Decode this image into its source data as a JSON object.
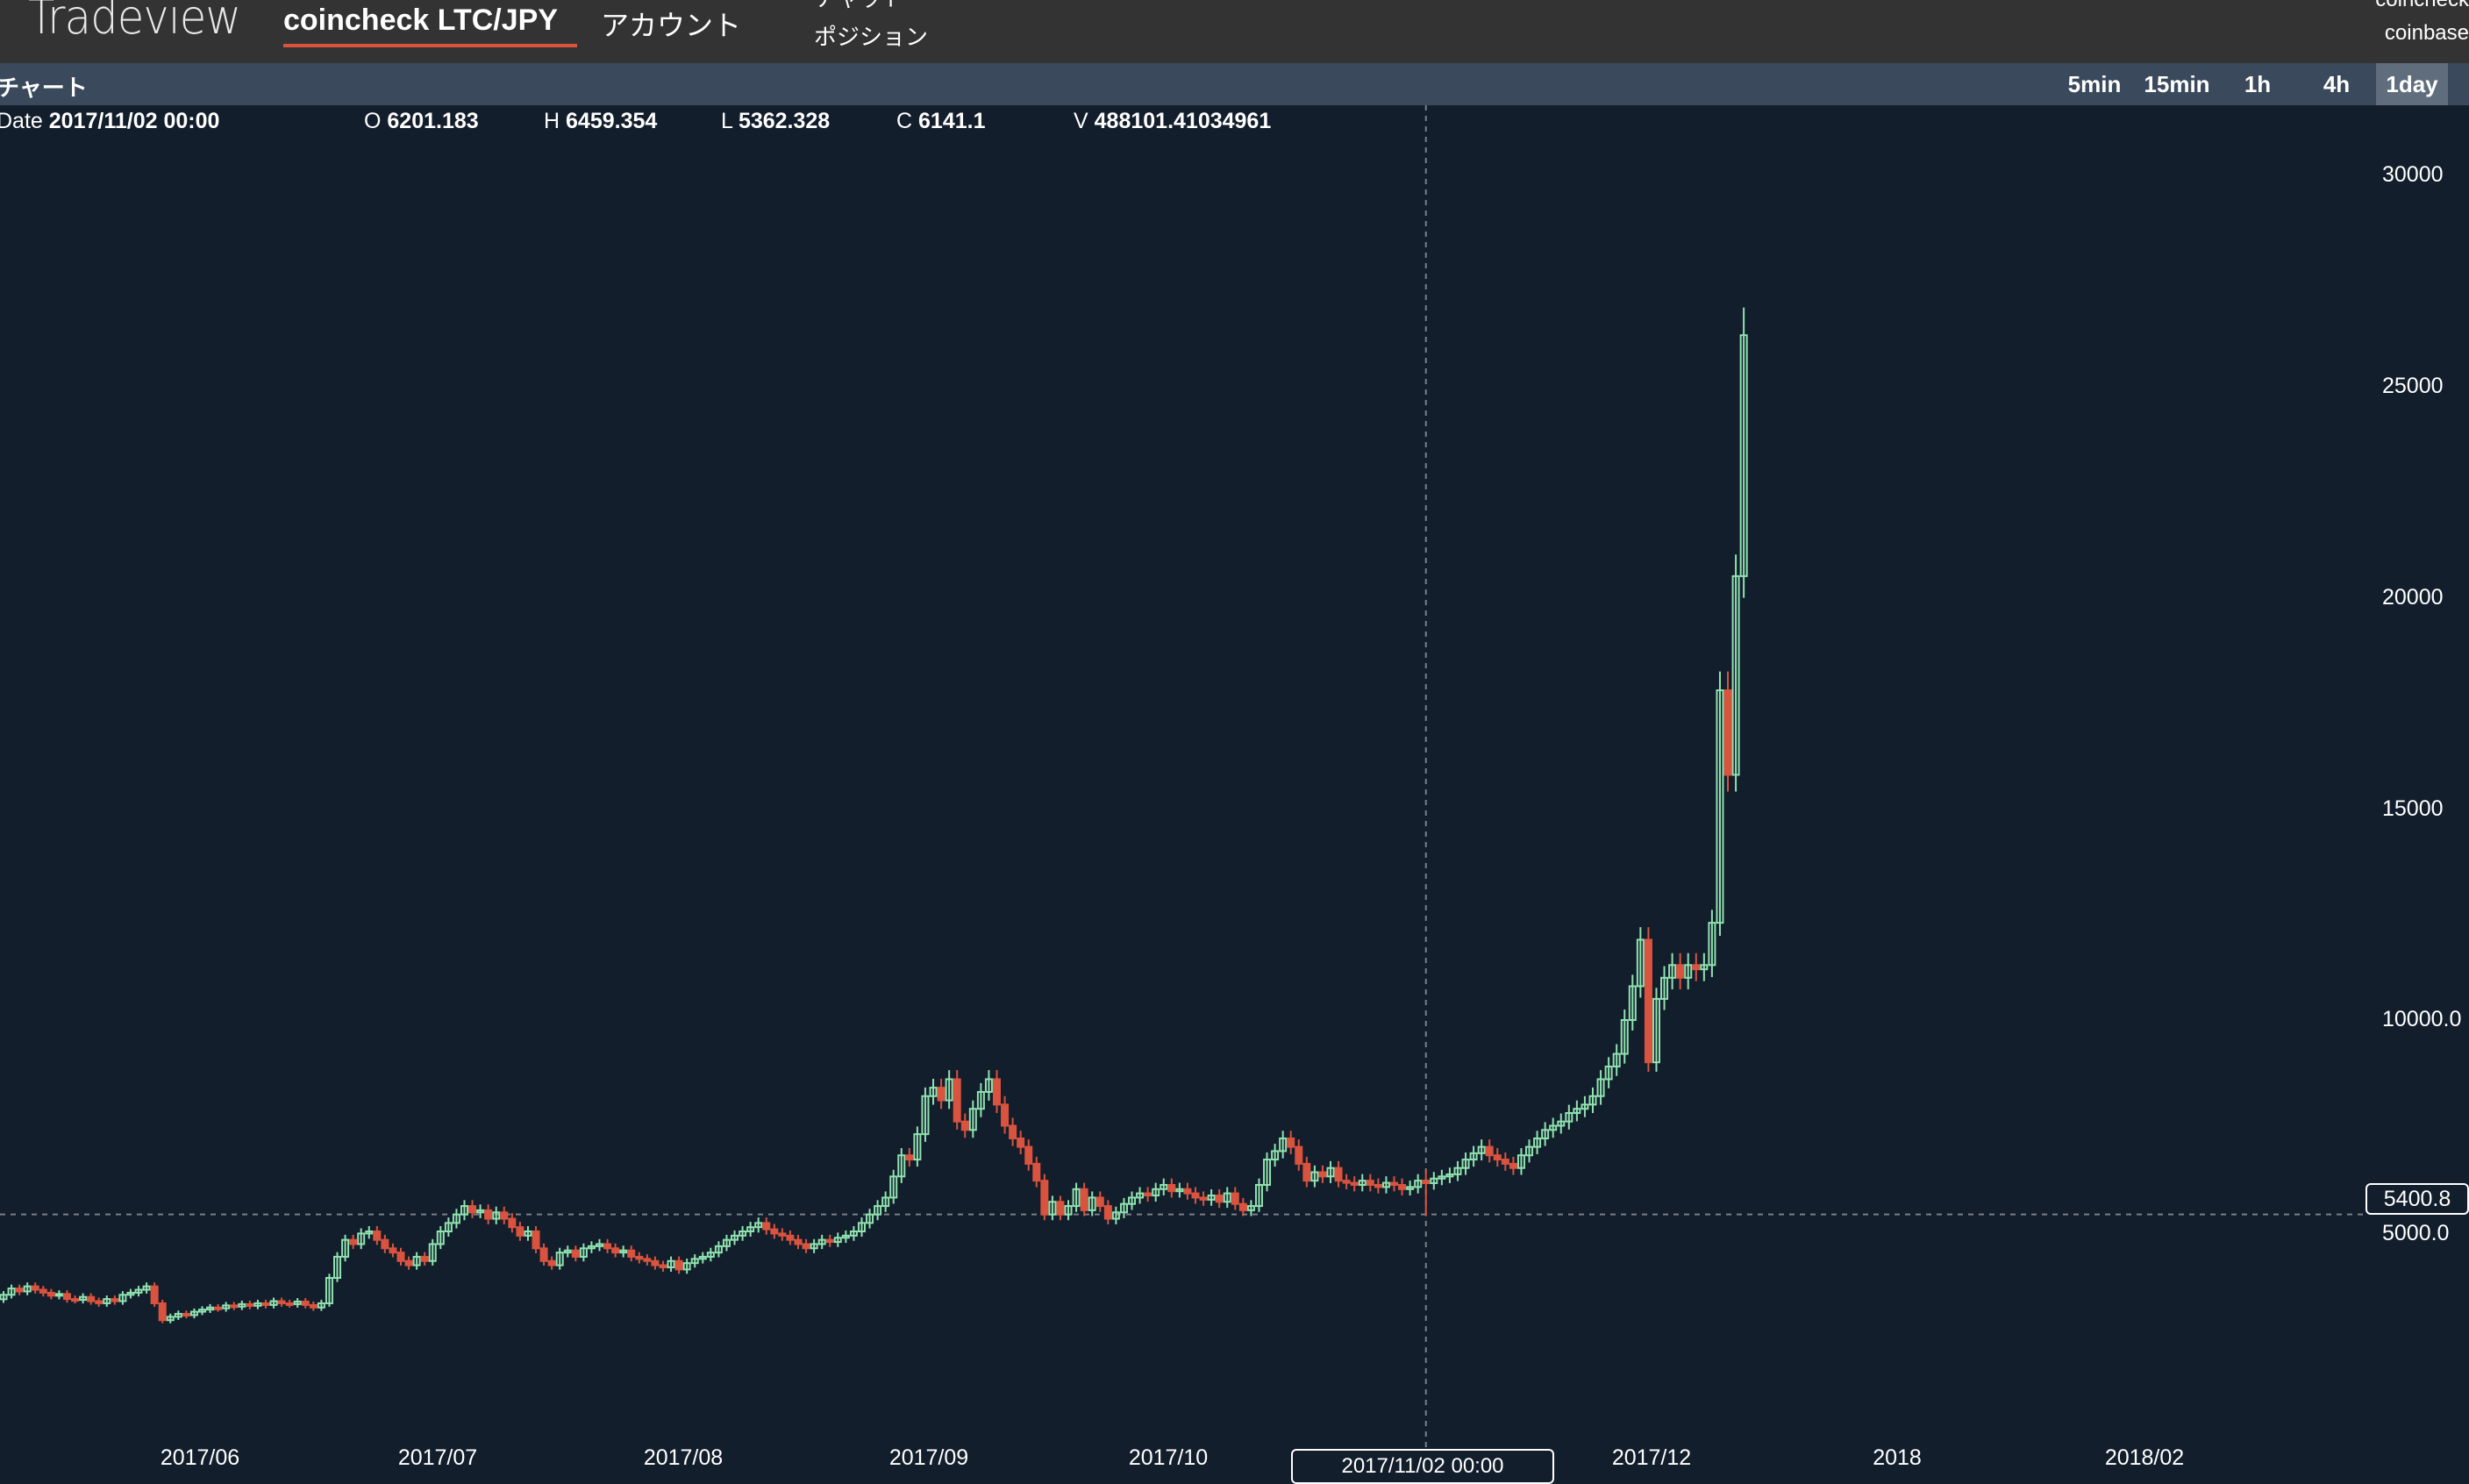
{
  "header": {
    "brand": "Tradeview",
    "nav": [
      {
        "label": "coincheck LTC/JPY",
        "active": true
      },
      {
        "label": "アカウント"
      },
      {
        "label": "チャット"
      },
      {
        "label": "ポジション"
      }
    ],
    "exchanges": [
      "coincheck",
      "coinbase"
    ]
  },
  "subbar": {
    "title": "チャート",
    "timeframes": [
      {
        "label": "5min"
      },
      {
        "label": "15min"
      },
      {
        "label": "1h"
      },
      {
        "label": "4h"
      },
      {
        "label": "1day",
        "active": true
      }
    ]
  },
  "legend": {
    "date_label": "Date",
    "date": "2017/11/02 00:00",
    "open_label": "O",
    "open": "6201.183",
    "high_label": "H",
    "high": "6459.354",
    "low_label": "L",
    "low": "5362.328",
    "close_label": "C",
    "close": "6141.1",
    "volume_label": "V",
    "volume": "488101.41034961"
  },
  "chart_data": {
    "type": "candlestick",
    "closes": [
      3500,
      3650,
      3580,
      3700,
      3620,
      3550,
      3480,
      3520,
      3400,
      3380,
      3450,
      3350,
      3300,
      3400,
      3350,
      3500,
      3550,
      3620,
      3700,
      3300,
      2900,
      2980,
      3050,
      3020,
      3100,
      3150,
      3200,
      3180,
      3250,
      3220,
      3280,
      3240,
      3300,
      3260,
      3350,
      3300,
      3280,
      3340,
      3260,
      3200,
      3300,
      3900,
      4400,
      4800,
      4700,
      4950,
      5000,
      4800,
      4600,
      4500,
      4300,
      4200,
      4400,
      4300,
      4700,
      5000,
      5200,
      5400,
      5600,
      5450,
      5500,
      5300,
      5450,
      5300,
      5100,
      4900,
      5000,
      4600,
      4300,
      4200,
      4500,
      4550,
      4400,
      4600,
      4650,
      4700,
      4600,
      4500,
      4550,
      4400,
      4350,
      4300,
      4200,
      4150,
      4300,
      4100,
      4250,
      4350,
      4400,
      4500,
      4650,
      4800,
      4900,
      5000,
      5100,
      5200,
      5050,
      4950,
      4900,
      4800,
      4700,
      4600,
      4700,
      4800,
      4750,
      4850,
      4900,
      5000,
      5200,
      5400,
      5600,
      5800,
      6300,
      6800,
      6700,
      7300,
      8200,
      8400,
      8100,
      8600,
      7600,
      7400,
      7900,
      8300,
      8600,
      8000,
      7500,
      7200,
      7000,
      6600,
      6200,
      5400,
      5700,
      5400,
      5600,
      6000,
      5500,
      5800,
      5600,
      5300,
      5450,
      5650,
      5800,
      5900,
      5850,
      6000,
      6100,
      5950,
      6000,
      5900,
      5800,
      5750,
      5850,
      5700,
      5900,
      5650,
      5500,
      5600,
      6100,
      6700,
      6900,
      7200,
      7000,
      6600,
      6200,
      6400,
      6300,
      6500,
      6200,
      6150,
      6100,
      6200,
      6100,
      6050,
      6150,
      6100,
      6000,
      6050,
      6200,
      6141.1,
      6250,
      6300,
      6350,
      6500,
      6700,
      6850,
      7000,
      6800,
      6700,
      6600,
      6500,
      6800,
      7000,
      7200,
      7400,
      7500,
      7600,
      7800,
      7900,
      8000,
      8200,
      8600,
      8900,
      9200,
      10000,
      10800,
      11900,
      9000,
      10500,
      11000,
      11300,
      11000,
      11300,
      11200,
      11300,
      12300,
      17800,
      15800,
      20500,
      26200
    ],
    "highlight": {
      "date": "2017/11/02 00:00",
      "open": 6201.183,
      "high": 6459.354,
      "low": 5362.328,
      "close": 6141.1
    },
    "y_ticks": [
      "30000",
      "25000",
      "20000",
      "15000",
      "10000.0",
      "5000.0"
    ],
    "x_ticks": [
      "2017/06",
      "2017/07",
      "2017/08",
      "2017/09",
      "2017/10",
      "2017/12",
      "2018",
      "2018/02"
    ],
    "current_price": "5400.8",
    "crosshair_label": "2017/11/02 00:00",
    "colors": {
      "up": "#8fe3b0",
      "down": "#d9533f",
      "background": "#131e2c",
      "grid_dash": "#7a7f87"
    }
  }
}
